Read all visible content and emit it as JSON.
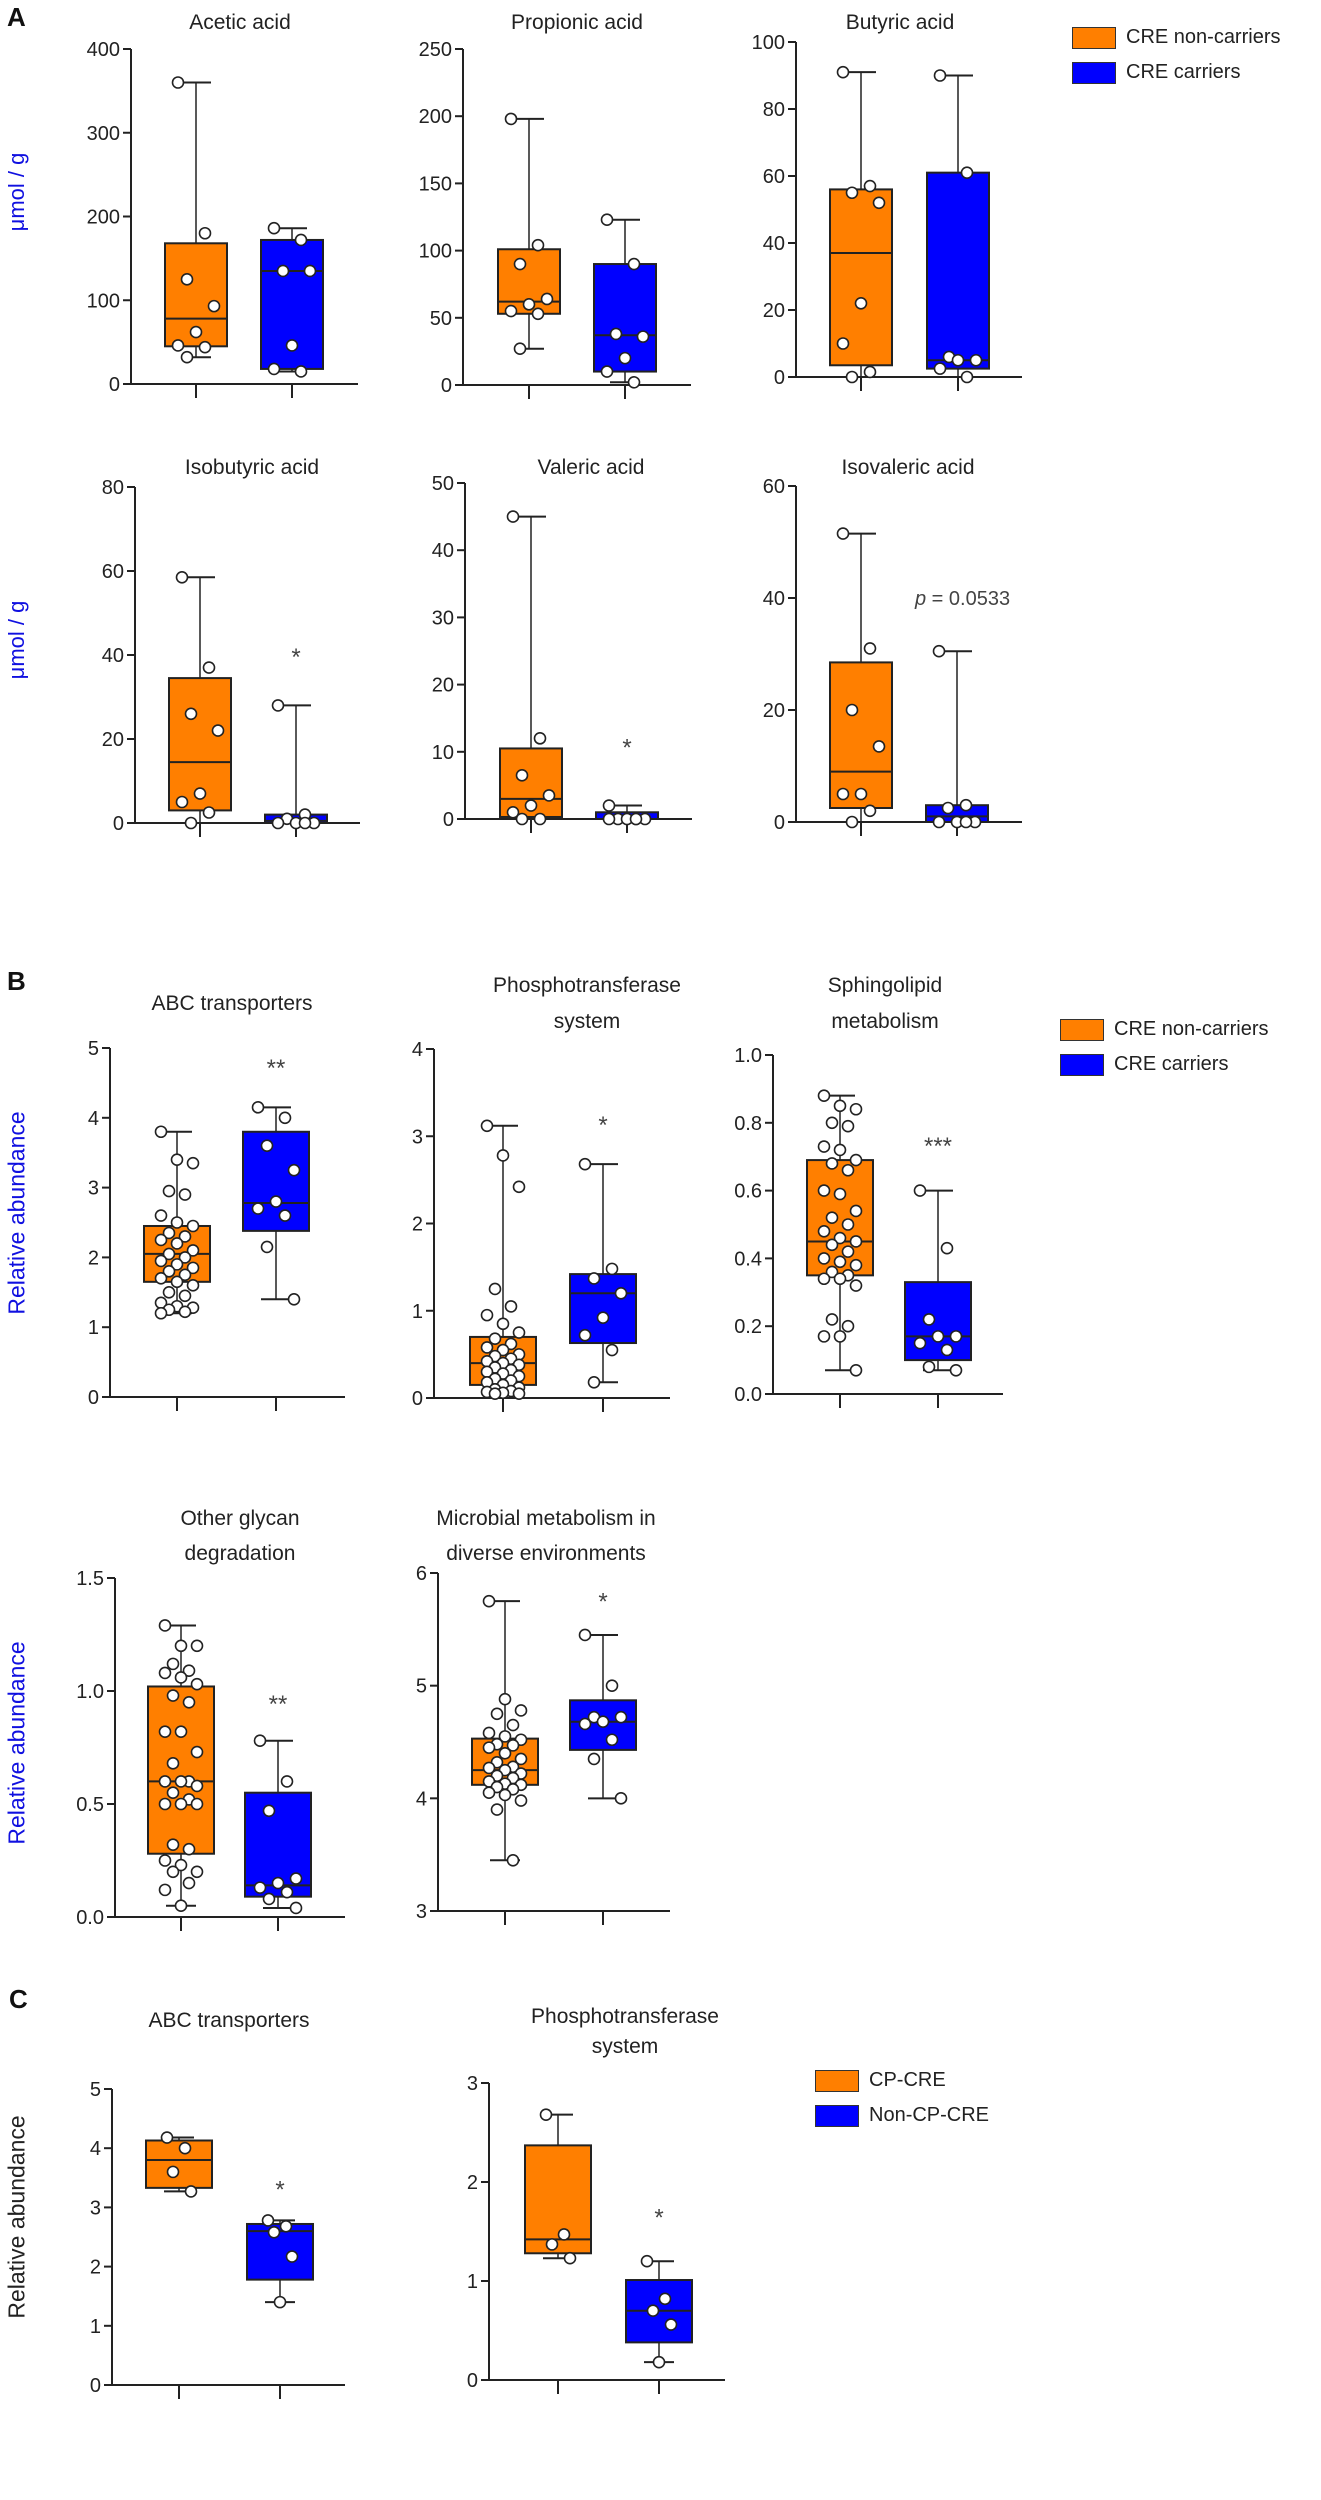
{
  "colors": {
    "orange": "#FF7F00",
    "blue": "#0000FF",
    "ylabel_blue": "#1010E0"
  },
  "panels": [
    {
      "letter": "A",
      "ylabel": "μmol / g",
      "ylabel2": "μmol / g",
      "legend": [
        "CRE non-carriers",
        "CRE carriers"
      ]
    },
    {
      "letter": "B",
      "ylabel": "Relative abundance",
      "ylabel2": "Relative abundance",
      "legend": [
        "CRE non-carriers",
        "CRE carriers"
      ]
    },
    {
      "letter": "C",
      "ylabel": "Relative abundance",
      "legend": [
        "CP-CRE",
        "Non-CP-CRE"
      ]
    }
  ],
  "chart_data": [
    {
      "type": "box",
      "panel": "A",
      "title": [
        "Acetic acid"
      ],
      "ylabel": "μmol / g",
      "ylim": [
        0,
        400
      ],
      "ticks": [
        "0",
        "100",
        "200",
        "300",
        "400"
      ],
      "tick_values": [
        0,
        100,
        200,
        300,
        400
      ],
      "groups": [
        {
          "name": "CRE non-carriers",
          "min": 32,
          "q1": 45,
          "median": 78,
          "q3": 168,
          "max": 360,
          "points": [
            360,
            180,
            125,
            93,
            62,
            46,
            44,
            32
          ]
        },
        {
          "name": "CRE carriers",
          "min": 15,
          "q1": 18,
          "median": 135,
          "q3": 172,
          "max": 186,
          "points": [
            186,
            172,
            135,
            135,
            46,
            18,
            15
          ]
        }
      ],
      "annotation": null
    },
    {
      "type": "box",
      "panel": "A",
      "title": [
        "Propionic acid"
      ],
      "ylabel": "μmol / g",
      "ylim": [
        0,
        250
      ],
      "ticks": [
        "0",
        "50",
        "100",
        "150",
        "200",
        "250"
      ],
      "tick_values": [
        0,
        50,
        100,
        150,
        200,
        250
      ],
      "groups": [
        {
          "name": "CRE non-carriers",
          "min": 27,
          "q1": 53,
          "median": 62,
          "q3": 101,
          "max": 198,
          "points": [
            198,
            104,
            90,
            64,
            60,
            55,
            53,
            27
          ]
        },
        {
          "name": "CRE carriers",
          "min": 2,
          "q1": 10,
          "median": 37,
          "q3": 90,
          "max": 123,
          "points": [
            123,
            90,
            38,
            36,
            20,
            10,
            2
          ]
        }
      ],
      "annotation": null
    },
    {
      "type": "box",
      "panel": "A",
      "title": [
        "Butyric acid"
      ],
      "ylabel": "μmol / g",
      "ylim": [
        0,
        100
      ],
      "ticks": [
        "0",
        "20",
        "40",
        "60",
        "80",
        "100"
      ],
      "tick_values": [
        0,
        20,
        40,
        60,
        80,
        100
      ],
      "groups": [
        {
          "name": "CRE non-carriers",
          "min": 0,
          "q1": 3.5,
          "median": 37,
          "q3": 56,
          "max": 91,
          "points": [
            91,
            57,
            55,
            52,
            22,
            10,
            1.5,
            0
          ]
        },
        {
          "name": "CRE carriers",
          "min": 0,
          "q1": 2.5,
          "median": 5,
          "q3": 61,
          "max": 90,
          "points": [
            90,
            61,
            6,
            5,
            5,
            2.5,
            0
          ]
        }
      ],
      "annotation": null
    },
    {
      "type": "box",
      "panel": "A",
      "title": [
        "Isobutyric acid"
      ],
      "ylabel": "μmol / g",
      "ylim": [
        0,
        80
      ],
      "ticks": [
        "0",
        "20",
        "40",
        "60",
        "80"
      ],
      "tick_values": [
        0,
        20,
        40,
        60,
        80
      ],
      "groups": [
        {
          "name": "CRE non-carriers",
          "min": 0,
          "q1": 3,
          "median": 14.5,
          "q3": 34.5,
          "max": 58.5,
          "points": [
            58.5,
            37,
            26,
            22,
            7,
            5,
            2.5,
            0
          ]
        },
        {
          "name": "CRE carriers",
          "min": 0,
          "q1": 0,
          "median": 0.5,
          "q3": 2,
          "max": 28,
          "points": [
            28,
            2,
            1,
            0,
            0,
            0,
            0
          ]
        }
      ],
      "annotation": {
        "text": "*",
        "value": 41,
        "group": 1
      }
    },
    {
      "type": "box",
      "panel": "A",
      "title": [
        "Valeric acid"
      ],
      "ylabel": "μmol / g",
      "ylim": [
        0,
        50
      ],
      "ticks": [
        "0",
        "10",
        "20",
        "30",
        "40",
        "50"
      ],
      "tick_values": [
        0,
        10,
        20,
        30,
        40,
        50
      ],
      "groups": [
        {
          "name": "CRE non-carriers",
          "min": 0,
          "q1": 0.3,
          "median": 3,
          "q3": 10.5,
          "max": 45,
          "points": [
            45,
            12,
            6.5,
            3.5,
            2,
            1,
            0,
            0
          ]
        },
        {
          "name": "CRE carriers",
          "min": 0,
          "q1": 0,
          "median": 0,
          "q3": 1,
          "max": 2,
          "points": [
            2,
            0,
            0,
            0,
            0,
            0,
            0
          ]
        }
      ],
      "annotation": {
        "text": "*",
        "value": 11.5,
        "group": 1
      }
    },
    {
      "type": "box",
      "panel": "A",
      "title": [
        "Isovaleric acid"
      ],
      "ylabel": "μmol / g",
      "ylim": [
        0,
        60
      ],
      "ticks": [
        "0",
        "20",
        "40",
        "60"
      ],
      "tick_values": [
        0,
        20,
        40,
        60
      ],
      "groups": [
        {
          "name": "CRE non-carriers",
          "min": 0,
          "q1": 2.5,
          "median": 9,
          "q3": 28.5,
          "max": 51.5,
          "points": [
            51.5,
            31,
            20,
            13.5,
            5,
            5,
            2,
            0
          ]
        },
        {
          "name": "CRE carriers",
          "min": 0,
          "q1": 0,
          "median": 1,
          "q3": 3,
          "max": 30.5,
          "points": [
            30.5,
            3,
            2.5,
            0,
            0,
            0,
            0
          ]
        }
      ],
      "annotation": {
        "text": "p = 0.0533",
        "value": 40,
        "group": 1
      }
    },
    {
      "type": "box",
      "panel": "B",
      "title": [
        "ABC transporters"
      ],
      "ylabel": "Relative abundance",
      "ylim": [
        0,
        5
      ],
      "ticks": [
        "0",
        "1",
        "2",
        "3",
        "4",
        "5"
      ],
      "tick_values": [
        0,
        1,
        2,
        3,
        4,
        5
      ],
      "groups": [
        {
          "name": "CRE non-carriers",
          "min": 1.2,
          "q1": 1.65,
          "median": 2.05,
          "q3": 2.45,
          "max": 3.8,
          "points": [
            3.8,
            3.4,
            3.35,
            2.95,
            2.9,
            2.6,
            2.5,
            2.45,
            2.35,
            2.3,
            2.25,
            2.2,
            2.1,
            2.05,
            2.0,
            1.95,
            1.9,
            1.85,
            1.8,
            1.75,
            1.7,
            1.65,
            1.6,
            1.5,
            1.45,
            1.35,
            1.3,
            1.28,
            1.25,
            1.22,
            1.2
          ]
        },
        {
          "name": "CRE carriers",
          "min": 1.4,
          "q1": 2.38,
          "median": 2.78,
          "q3": 3.8,
          "max": 4.15,
          "points": [
            4.15,
            4.0,
            3.6,
            3.25,
            2.8,
            2.7,
            2.6,
            2.15,
            1.4
          ]
        }
      ],
      "annotation": {
        "text": "**",
        "value": 4.8,
        "group": 1
      }
    },
    {
      "type": "box",
      "panel": "B",
      "title": [
        "Phosphotransferase",
        "system"
      ],
      "ylabel": "Relative abundance",
      "ylim": [
        0,
        4
      ],
      "ticks": [
        "0",
        "1",
        "2",
        "3",
        "4"
      ],
      "tick_values": [
        0,
        1,
        2,
        3,
        4
      ],
      "groups": [
        {
          "name": "CRE non-carriers",
          "min": 0.05,
          "q1": 0.15,
          "median": 0.4,
          "q3": 0.7,
          "max": 3.12,
          "points": [
            3.12,
            2.78,
            2.42,
            1.25,
            1.05,
            0.95,
            0.85,
            0.75,
            0.68,
            0.62,
            0.58,
            0.55,
            0.5,
            0.48,
            0.45,
            0.42,
            0.4,
            0.38,
            0.35,
            0.32,
            0.3,
            0.28,
            0.25,
            0.22,
            0.2,
            0.18,
            0.15,
            0.12,
            0.1,
            0.08,
            0.07,
            0.06,
            0.05,
            0.05
          ]
        },
        {
          "name": "CRE carriers",
          "min": 0.18,
          "q1": 0.63,
          "median": 1.2,
          "q3": 1.42,
          "max": 2.68,
          "points": [
            2.68,
            1.48,
            1.37,
            1.2,
            0.92,
            0.72,
            0.55,
            0.18
          ]
        }
      ],
      "annotation": {
        "text": "*",
        "value": 3.2,
        "group": 1
      }
    },
    {
      "type": "box",
      "panel": "B",
      "title": [
        "Sphingolipid",
        "metabolism"
      ],
      "ylabel": "Relative abundance",
      "ylim": [
        0,
        1
      ],
      "ticks": [
        "0.0",
        "0.2",
        "0.4",
        "0.6",
        "0.8",
        "1.0"
      ],
      "tick_values": [
        0,
        0.2,
        0.4,
        0.6,
        0.8,
        1.0
      ],
      "groups": [
        {
          "name": "CRE non-carriers",
          "min": 0.07,
          "q1": 0.35,
          "median": 0.45,
          "q3": 0.69,
          "max": 0.88,
          "points": [
            0.88,
            0.85,
            0.84,
            0.8,
            0.79,
            0.73,
            0.72,
            0.69,
            0.68,
            0.66,
            0.6,
            0.59,
            0.54,
            0.52,
            0.5,
            0.48,
            0.46,
            0.45,
            0.44,
            0.42,
            0.4,
            0.39,
            0.38,
            0.36,
            0.35,
            0.34,
            0.34,
            0.32,
            0.22,
            0.2,
            0.17,
            0.17,
            0.07
          ]
        },
        {
          "name": "CRE carriers",
          "min": 0.07,
          "q1": 0.1,
          "median": 0.17,
          "q3": 0.33,
          "max": 0.6,
          "points": [
            0.6,
            0.43,
            0.22,
            0.17,
            0.17,
            0.15,
            0.13,
            0.08,
            0.07
          ]
        }
      ],
      "annotation": {
        "text": "***",
        "value": 0.75,
        "group": 1
      }
    },
    {
      "type": "box",
      "panel": "B",
      "title": [
        "Other glycan",
        "degradation"
      ],
      "ylabel": "Relative abundance",
      "ylim": [
        0,
        1.5
      ],
      "ticks": [
        "0.0",
        "0.5",
        "1.0",
        "1.5"
      ],
      "tick_values": [
        0,
        0.5,
        1.0,
        1.5
      ],
      "groups": [
        {
          "name": "CRE non-carriers",
          "min": 0.05,
          "q1": 0.28,
          "median": 0.6,
          "q3": 1.02,
          "max": 1.29,
          "points": [
            1.29,
            1.2,
            1.2,
            1.12,
            1.09,
            1.08,
            1.06,
            1.03,
            0.98,
            0.95,
            0.82,
            0.82,
            0.73,
            0.68,
            0.6,
            0.6,
            0.6,
            0.58,
            0.55,
            0.52,
            0.5,
            0.5,
            0.5,
            0.32,
            0.3,
            0.25,
            0.23,
            0.2,
            0.2,
            0.15,
            0.12,
            0.05
          ]
        },
        {
          "name": "CRE carriers",
          "min": 0.04,
          "q1": 0.09,
          "median": 0.14,
          "q3": 0.55,
          "max": 0.78,
          "points": [
            0.78,
            0.6,
            0.47,
            0.17,
            0.15,
            0.13,
            0.11,
            0.08,
            0.04
          ]
        }
      ],
      "annotation": {
        "text": "**",
        "value": 0.97,
        "group": 1
      }
    },
    {
      "type": "box",
      "panel": "B",
      "title": [
        "Microbial metabolism in",
        "diverse environments"
      ],
      "ylabel": "Relative abundance",
      "ylim": [
        3,
        6
      ],
      "ticks": [
        "3",
        "4",
        "5",
        "6"
      ],
      "tick_values": [
        3,
        4,
        5,
        6
      ],
      "groups": [
        {
          "name": "CRE non-carriers",
          "min": 3.45,
          "q1": 4.12,
          "median": 4.25,
          "q3": 4.53,
          "max": 5.75,
          "points": [
            5.75,
            4.88,
            4.78,
            4.75,
            4.65,
            4.58,
            4.55,
            4.52,
            4.48,
            4.47,
            4.45,
            4.4,
            4.35,
            4.32,
            4.28,
            4.27,
            4.25,
            4.22,
            4.2,
            4.18,
            4.15,
            4.13,
            4.12,
            4.1,
            4.08,
            4.05,
            4.03,
            3.98,
            3.9,
            3.45
          ]
        },
        {
          "name": "CRE carriers",
          "min": 4.0,
          "q1": 4.43,
          "median": 4.68,
          "q3": 4.87,
          "max": 5.45,
          "points": [
            5.45,
            5.0,
            4.72,
            4.72,
            4.68,
            4.66,
            4.52,
            4.35,
            4.0
          ]
        }
      ],
      "annotation": {
        "text": "*",
        "value": 5.8,
        "group": 1
      }
    },
    {
      "type": "box",
      "panel": "C",
      "title": [
        "ABC transporters"
      ],
      "ylabel": "Relative abundance",
      "ylim": [
        0,
        5
      ],
      "ticks": [
        "0",
        "1",
        "2",
        "3",
        "4",
        "5"
      ],
      "tick_values": [
        0,
        1,
        2,
        3,
        4,
        5
      ],
      "groups": [
        {
          "name": "CP-CRE",
          "min": 3.27,
          "q1": 3.33,
          "median": 3.8,
          "q3": 4.13,
          "max": 4.18,
          "points": [
            4.18,
            4.0,
            3.6,
            3.27
          ]
        },
        {
          "name": "Non-CP-CRE",
          "min": 1.4,
          "q1": 1.78,
          "median": 2.6,
          "q3": 2.72,
          "max": 2.78,
          "points": [
            2.78,
            2.68,
            2.58,
            2.17,
            1.4
          ]
        }
      ],
      "annotation": {
        "text": "*",
        "value": 3.4,
        "group": 1
      }
    },
    {
      "type": "box",
      "panel": "C",
      "title": [
        "Phosphotransferase",
        "system"
      ],
      "ylabel": "Relative abundance",
      "ylim": [
        0,
        3
      ],
      "ticks": [
        "0",
        "1",
        "2",
        "3"
      ],
      "tick_values": [
        0,
        1,
        2,
        3
      ],
      "groups": [
        {
          "name": "CP-CRE",
          "min": 1.23,
          "q1": 1.28,
          "median": 1.42,
          "q3": 2.37,
          "max": 2.68,
          "points": [
            2.68,
            1.47,
            1.37,
            1.23
          ]
        },
        {
          "name": "Non-CP-CRE",
          "min": 0.18,
          "q1": 0.38,
          "median": 0.7,
          "q3": 1.01,
          "max": 1.2,
          "points": [
            1.2,
            0.82,
            0.7,
            0.56,
            0.18
          ]
        }
      ],
      "annotation": {
        "text": "*",
        "value": 1.7,
        "group": 1
      }
    }
  ]
}
